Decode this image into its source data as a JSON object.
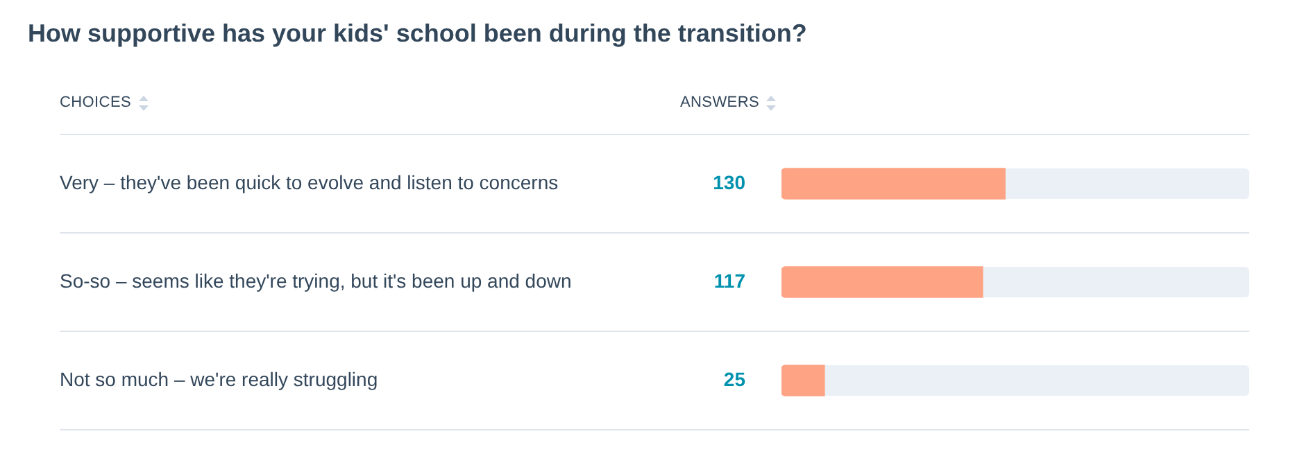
{
  "chart_data": {
    "type": "bar",
    "orientation": "horizontal",
    "title": "How supportive has your kids' school been during the transition?",
    "annotations": [
      "CHOICES",
      "ANSWERS"
    ],
    "categories": [
      "Very – they've been quick to evolve and listen to concerns",
      "So-so – seems like they're trying, but it's been up and down",
      "Not so much – we're really struggling"
    ],
    "values": [
      130,
      117,
      25
    ],
    "color": "#ffa385",
    "xlim": [
      0,
      272
    ],
    "data_labels": true,
    "grid": "y",
    "legend": false
  }
}
